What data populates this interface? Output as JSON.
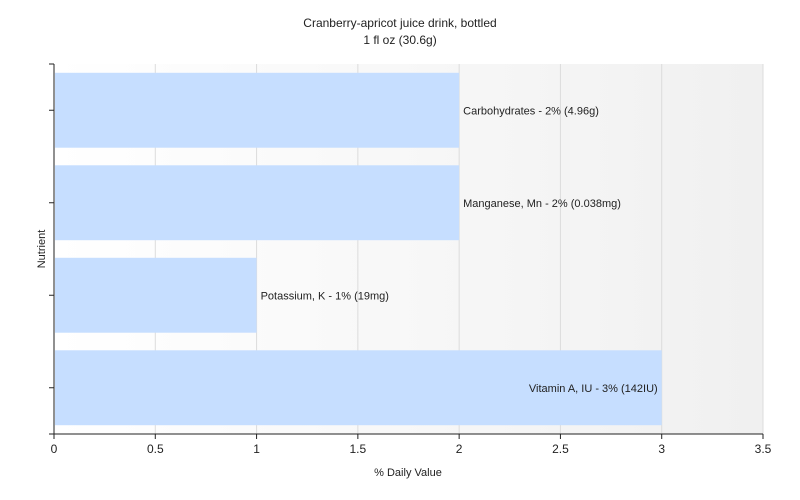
{
  "chart_data": {
    "type": "bar",
    "orientation": "horizontal",
    "title": "Cranberry-apricot juice drink, bottled",
    "subtitle": "1 fl oz (30.6g)",
    "xlabel": "% Daily Value",
    "ylabel": "Nutrient",
    "xlim": [
      0,
      3.5
    ],
    "xticks": [
      "0",
      "0.5",
      "1",
      "1.5",
      "2",
      "2.5",
      "3",
      "3.5"
    ],
    "grid": true,
    "bar_color": "#c6deff",
    "bars": [
      {
        "category": "Carbohydrates",
        "value": 2,
        "label": "Carbohydrates - 2% (4.96g)"
      },
      {
        "category": "Manganese, Mn",
        "value": 2,
        "label": "Manganese, Mn - 2% (0.038mg)"
      },
      {
        "category": "Potassium, K",
        "value": 1,
        "label": "Potassium, K - 1% (19mg)"
      },
      {
        "category": "Vitamin A, IU",
        "value": 3,
        "label": "Vitamin A, IU - 3% (142IU)"
      }
    ]
  }
}
